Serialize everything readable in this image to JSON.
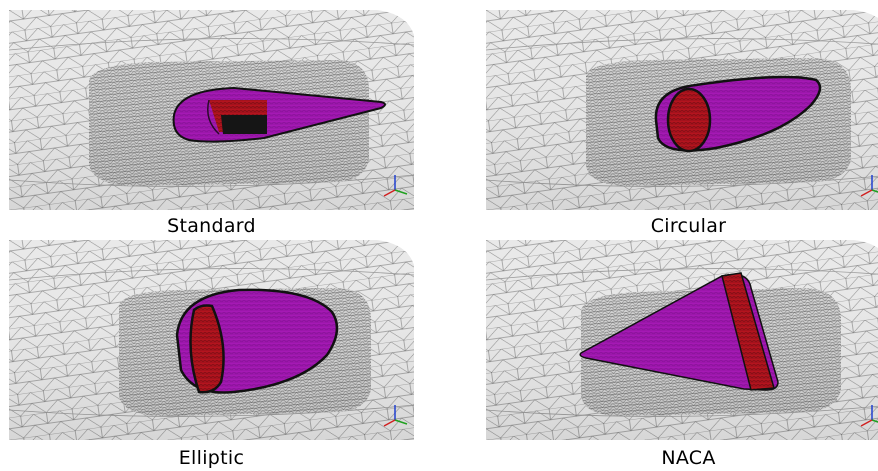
{
  "panels": [
    {
      "caption": "Standard",
      "shape": "standard-nozzle"
    },
    {
      "caption": "Circular",
      "shape": "circular-nozzle"
    },
    {
      "caption": "Elliptic",
      "shape": "elliptic-nozzle"
    },
    {
      "caption": "NACA",
      "shape": "naca-nozzle"
    }
  ],
  "colors": {
    "mesh_surface": "#e6e6e6",
    "mesh_lines": "#5a5a5a",
    "body_magenta": "#a519b4",
    "inlet_red": "#b4141e",
    "outline": "#111111",
    "axis_x": "#d02020",
    "axis_y": "#20a020",
    "axis_z": "#2040d0"
  }
}
